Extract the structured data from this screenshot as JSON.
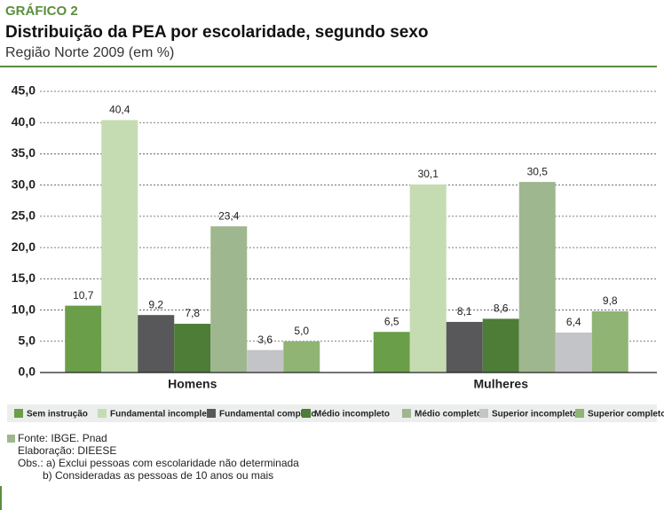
{
  "chart_data": {
    "type": "bar",
    "label": "GRÁFICO 2",
    "title": "Distribuição da PEA por escolaridade, segundo sexo",
    "subtitle": "Região Norte 2009 (em %)",
    "categories": [
      "Homens",
      "Mulheres"
    ],
    "series": [
      {
        "name": "Sem instrução",
        "color": "#6a9e48",
        "values": [
          10.7,
          6.5
        ],
        "value_labels": [
          "10,7",
          "6,5"
        ]
      },
      {
        "name": "Fundamental incompleto",
        "color": "#c5dcb2",
        "values": [
          40.4,
          30.1
        ],
        "value_labels": [
          "40,4",
          "30,1"
        ]
      },
      {
        "name": "Fundamental completo",
        "color": "#58585a",
        "values": [
          9.2,
          8.1
        ],
        "value_labels": [
          "9,2",
          "8,1"
        ]
      },
      {
        "name": "Médio incompleto",
        "color": "#4d7d37",
        "values": [
          7.8,
          8.6
        ],
        "value_labels": [
          "7,8",
          "8,6"
        ]
      },
      {
        "name": "Médio completo",
        "color": "#9fb78f",
        "values": [
          23.4,
          30.5
        ],
        "value_labels": [
          "23,4",
          "30,5"
        ]
      },
      {
        "name": "Superior incompleto",
        "color": "#c3c4c8",
        "values": [
          3.6,
          6.4
        ],
        "value_labels": [
          "3,6",
          "6,4"
        ]
      },
      {
        "name": "Superior completo",
        "color": "#8fb474",
        "values": [
          5.0,
          9.8
        ],
        "value_labels": [
          "5,0",
          "9,8"
        ]
      }
    ],
    "ylim": [
      0,
      45
    ],
    "yticks": [
      {
        "value": 0,
        "label": "0,0"
      },
      {
        "value": 5,
        "label": "5,0"
      },
      {
        "value": 10,
        "label": "10,0"
      },
      {
        "value": 15,
        "label": "15,0"
      },
      {
        "value": 20,
        "label": "20,0"
      },
      {
        "value": 25,
        "label": "25,0"
      },
      {
        "value": 30,
        "label": "30,0"
      },
      {
        "value": 35,
        "label": "35,0"
      },
      {
        "value": 40,
        "label": "40,0"
      },
      {
        "value": 45,
        "label": "45,0"
      }
    ],
    "grid": true,
    "notes": {
      "source": "Fonte: IBGE. Pnad",
      "prepared": "Elaboração: DIEESE",
      "obs_a": "Obs.: a) Exclui pessoas com escolaridade não determinada",
      "obs_b": "b) Consideradas as pessoas de 10 anos ou mais"
    }
  }
}
